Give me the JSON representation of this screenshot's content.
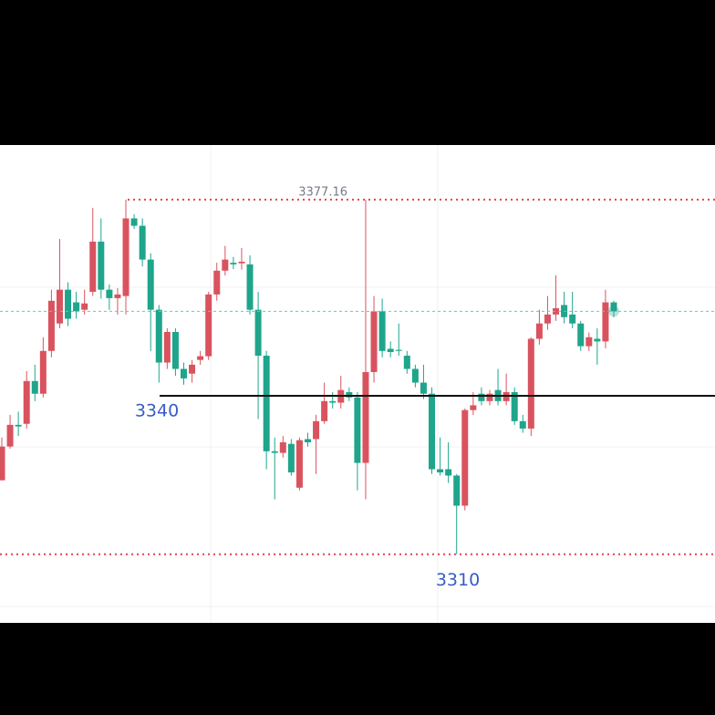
{
  "chart_data": {
    "type": "candlestick",
    "open": [
      3324.0,
      3330.4,
      3334.5,
      3334.7,
      3342.8,
      3340.4,
      3348.5,
      3353.7,
      3360.1,
      3357.7,
      3356.3,
      3359.7,
      3369.2,
      3360.1,
      3358.5,
      3358.9,
      3373.6,
      3372.2,
      3365.8,
      3356.3,
      3346.3,
      3352.1,
      3345.1,
      3344.2,
      3346.8,
      3347.5,
      3359.2,
      3363.7,
      3365.2,
      3365.1,
      3364.9,
      3356.3,
      3347.6,
      3329.5,
      3329.2,
      3330.9,
      3322.6,
      3331.8,
      3331.8,
      3335.2,
      3339.0,
      3338.7,
      3340.7,
      3339.7,
      3327.3,
      3344.5,
      3356.0,
      3348.9,
      3348.7,
      3347.6,
      3345.1,
      3342.5,
      3340.4,
      3326.1,
      3326.1,
      3324.9,
      3319.2,
      3337.3,
      3340.4,
      3339.0,
      3341.1,
      3339.0,
      3340.7,
      3335.2,
      3333.8,
      3350.8,
      3353.7,
      3355.4,
      3357.2,
      3355.4,
      3353.7,
      3349.4,
      3350.8,
      3350.3,
      3357.7
    ],
    "high": [
      3332.1,
      3336.4,
      3337.0,
      3344.7,
      3345.9,
      3351.1,
      3360.1,
      3369.7,
      3361.5,
      3359.7,
      3360.1,
      3375.6,
      3373.6,
      3361.1,
      3360.4,
      3377.16,
      3374.4,
      3373.6,
      3367.0,
      3357.2,
      3352.8,
      3352.8,
      3346.3,
      3346.8,
      3348.5,
      3359.7,
      3365.2,
      3368.4,
      3366.3,
      3368.0,
      3366.6,
      3359.7,
      3348.5,
      3332.1,
      3332.4,
      3331.8,
      3332.1,
      3333.0,
      3336.4,
      3342.5,
      3340.7,
      3343.8,
      3341.6,
      3340.7,
      3377.16,
      3358.9,
      3358.4,
      3350.3,
      3353.7,
      3348.5,
      3345.9,
      3345.9,
      3341.6,
      3332.1,
      3331.2,
      3325.2,
      3337.6,
      3340.7,
      3341.6,
      3341.1,
      3345.1,
      3344.2,
      3341.6,
      3336.4,
      3351.1,
      3356.3,
      3358.9,
      3362.8,
      3359.7,
      3359.7,
      3354.2,
      3352.0,
      3352.8,
      3360.1,
      3358.0
    ],
    "low": [
      3324.0,
      3330.0,
      3332.4,
      3333.8,
      3339.0,
      3339.7,
      3347.3,
      3352.8,
      3353.2,
      3354.6,
      3355.4,
      3358.9,
      3358.4,
      3356.3,
      3355.4,
      3355.4,
      3371.6,
      3364.5,
      3348.5,
      3342.5,
      3345.1,
      3343.8,
      3342.1,
      3342.5,
      3345.9,
      3346.8,
      3358.0,
      3362.8,
      3364.0,
      3363.9,
      3355.4,
      3335.6,
      3326.1,
      3320.4,
      3328.3,
      3324.9,
      3322.1,
      3330.4,
      3325.2,
      3334.7,
      3337.6,
      3337.6,
      3339.0,
      3322.1,
      3320.4,
      3342.5,
      3347.3,
      3347.3,
      3347.6,
      3344.2,
      3341.6,
      3339.4,
      3325.2,
      3324.9,
      3323.5,
      3310,
      3318.3,
      3336.4,
      3338.2,
      3338.2,
      3338.2,
      3338.2,
      3334.5,
      3333.0,
      3332.4,
      3349.7,
      3352.5,
      3354.2,
      3353.7,
      3352.8,
      3348.5,
      3348.5,
      3345.9,
      3349.0,
      3354.9
    ],
    "close": [
      3330.4,
      3334.5,
      3334.2,
      3342.8,
      3340.4,
      3348.5,
      3358.0,
      3360.1,
      3354.6,
      3356.0,
      3357.5,
      3369.2,
      3360.1,
      3358.5,
      3359.2,
      3373.6,
      3372.2,
      3365.8,
      3356.3,
      3346.3,
      3352.1,
      3345.1,
      3343.3,
      3345.9,
      3347.5,
      3359.2,
      3363.7,
      3365.8,
      3364.9,
      3365.4,
      3356.3,
      3347.6,
      3329.5,
      3329.2,
      3331.2,
      3325.5,
      3331.6,
      3331.2,
      3335.2,
      3339.0,
      3338.7,
      3341.1,
      3339.7,
      3327.3,
      3344.5,
      3356.0,
      3348.5,
      3348.3,
      3348.5,
      3345.1,
      3342.5,
      3340.4,
      3326.1,
      3325.5,
      3324.9,
      3319.2,
      3337.3,
      3338.2,
      3339.0,
      3340.4,
      3339.0,
      3340.7,
      3335.2,
      3333.8,
      3350.8,
      3353.7,
      3355.4,
      3356.6,
      3354.9,
      3353.7,
      3349.4,
      3351.1,
      3350.3,
      3357.7,
      3356.0
    ],
    "up_color": "#d9535f",
    "down_color": "#1ea58b",
    "levels": [
      3377.16,
      3340,
      3310
    ],
    "ylim": [
      3297.0,
      3387.5
    ]
  }
}
